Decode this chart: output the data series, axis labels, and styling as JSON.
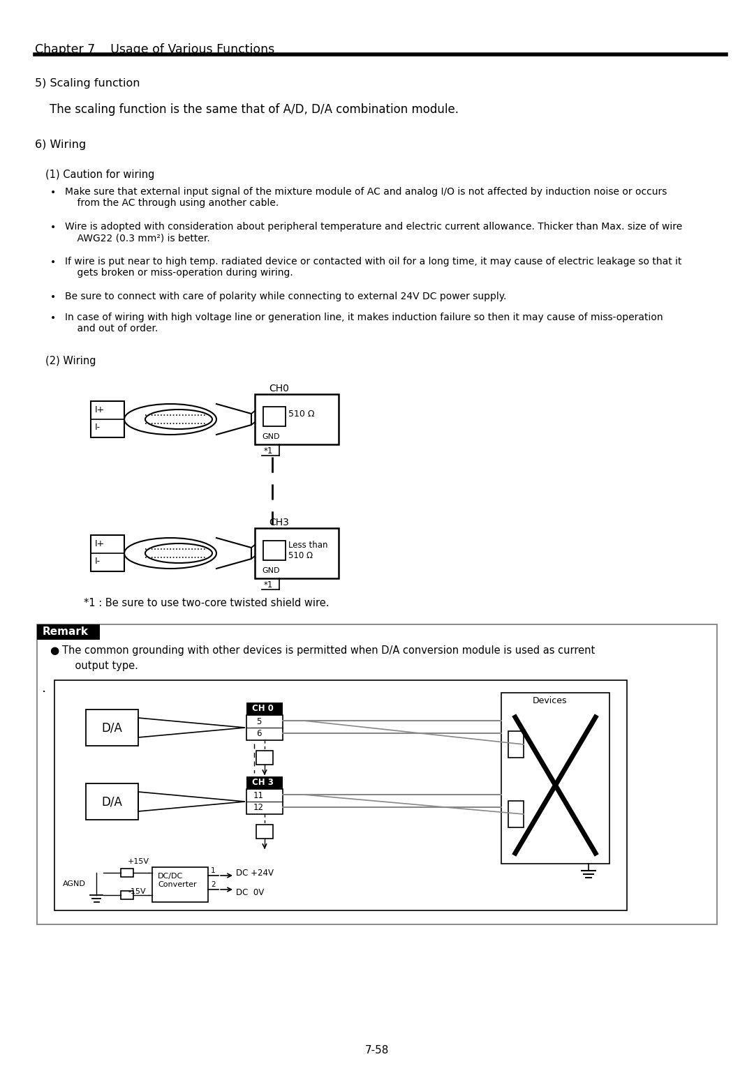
{
  "bg_color": "#ffffff",
  "chapter_title": "Chapter 7    Usage of Various Functions",
  "section5_title": "5) Scaling function",
  "section5_body": "    The scaling function is the same that of A/D, D/A combination module.",
  "section6_title": "6) Wiring",
  "sub1_title": "(1) Caution for wiring",
  "bullets": [
    "Make sure that external input signal of the mixture module of AC and analog I/O is not affected by induction noise or occurs\n    from the AC through using another cable.",
    "Wire is adopted with consideration about peripheral temperature and electric current allowance. Thicker than Max. size of wire\n    AWG22 (0.3 mm²) is better.",
    "If wire is put near to high temp. radiated device or contacted with oil for a long time, it may cause of electric leakage so that it\n    gets broken or miss-operation during wiring.",
    "Be sure to connect with care of polarity while connecting to external 24V DC power supply.",
    "In case of wiring with high voltage line or generation line, it makes induction failure so then it may cause of miss-operation\n    and out of order."
  ],
  "sub2_title": "(2) Wiring",
  "ch0_label": "CH0",
  "ch3_label": "CH3",
  "res1_label": "510 Ω",
  "res2_label": "Less than\n510 Ω",
  "gnd_label": "GND",
  "star1_label": "*1",
  "star1_note": "*1 : Be sure to use two-core twisted shield wire.",
  "remark_title": "Remark",
  "remark_text1": "The common grounding with other devices is permitted when D/A conversion module is used as current",
  "remark_text2": "    output type.",
  "page_number": "7-58"
}
